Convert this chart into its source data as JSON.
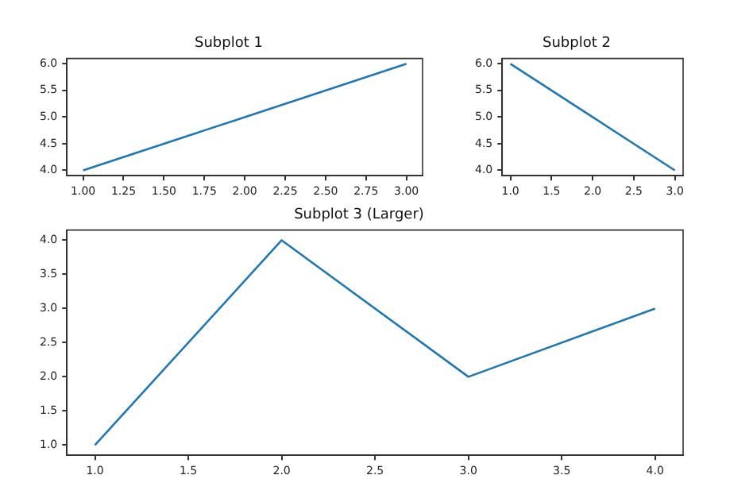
{
  "chart_data": [
    {
      "type": "line",
      "title": "Subplot 1",
      "x": [
        1,
        2,
        3
      ],
      "values": [
        4,
        5,
        6
      ],
      "color": "#1f77b4",
      "marker": "none",
      "xlim": [
        0.9,
        3.1
      ],
      "xticks": [
        {
          "value": 1,
          "label": "1.00"
        },
        {
          "value": 1.25,
          "label": "1.25"
        },
        {
          "value": 1.5,
          "label": "1.50"
        },
        {
          "value": 1.75,
          "label": "1.75"
        },
        {
          "value": 2,
          "label": "2.00"
        },
        {
          "value": 2.25,
          "label": "2.25"
        },
        {
          "value": 2.5,
          "label": "2.50"
        },
        {
          "value": 2.75,
          "label": "2.75"
        },
        {
          "value": 3,
          "label": "3.00"
        }
      ],
      "ylim": [
        3.9,
        6.1
      ],
      "yticks": [
        {
          "value": 4,
          "label": "4.0"
        },
        {
          "value": 4.5,
          "label": "4.5"
        },
        {
          "value": 5,
          "label": "5.0"
        },
        {
          "value": 5.5,
          "label": "5.5"
        },
        {
          "value": 6,
          "label": "6.0"
        }
      ]
    },
    {
      "type": "line",
      "title": "Subplot 2",
      "x": [
        1,
        2,
        3
      ],
      "values": [
        6,
        5,
        4
      ],
      "color": "#1f77b4",
      "marker": "none",
      "xlim": [
        0.9,
        3.1
      ],
      "xticks": [
        {
          "value": 1,
          "label": "1.0"
        },
        {
          "value": 1.5,
          "label": "1.5"
        },
        {
          "value": 2,
          "label": "2.0"
        },
        {
          "value": 2.5,
          "label": "2.5"
        },
        {
          "value": 3,
          "label": "3.0"
        }
      ],
      "ylim": [
        3.9,
        6.1
      ],
      "yticks": [
        {
          "value": 4,
          "label": "4.0"
        },
        {
          "value": 4.5,
          "label": "4.5"
        },
        {
          "value": 5,
          "label": "5.0"
        },
        {
          "value": 5.5,
          "label": "5.5"
        },
        {
          "value": 6,
          "label": "6.0"
        }
      ]
    },
    {
      "type": "line",
      "title": "Subplot 3 (Larger)",
      "x": [
        1,
        2,
        3,
        4
      ],
      "values": [
        1,
        4,
        2,
        3
      ],
      "color": "#1f77b4",
      "marker": "none",
      "xlim": [
        0.85,
        4.15
      ],
      "xticks": [
        {
          "value": 1,
          "label": "1.0"
        },
        {
          "value": 1.5,
          "label": "1.5"
        },
        {
          "value": 2,
          "label": "2.0"
        },
        {
          "value": 2.5,
          "label": "2.5"
        },
        {
          "value": 3,
          "label": "3.0"
        },
        {
          "value": 3.5,
          "label": "3.5"
        },
        {
          "value": 4,
          "label": "4.0"
        }
      ],
      "ylim": [
        0.85,
        4.15
      ],
      "yticks": [
        {
          "value": 1,
          "label": "1.0"
        },
        {
          "value": 1.5,
          "label": "1.5"
        },
        {
          "value": 2,
          "label": "2.0"
        },
        {
          "value": 2.5,
          "label": "2.5"
        },
        {
          "value": 3,
          "label": "3.0"
        },
        {
          "value": 3.5,
          "label": "3.5"
        },
        {
          "value": 4,
          "label": "4.0"
        }
      ]
    }
  ]
}
